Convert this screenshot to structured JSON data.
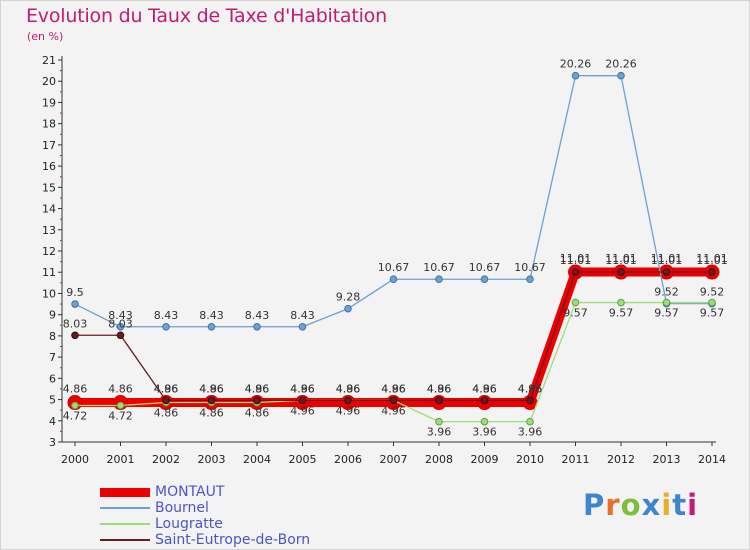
{
  "header": {
    "title": "Evolution du Taux de Taxe d'Habitation",
    "unit": "(en %)"
  },
  "logo": {
    "text": "Proxiti",
    "letter_colors": [
      "#3d86cf",
      "#e8702a",
      "#7dbf3a",
      "#3d86cf",
      "#e8b02a",
      "#3d86cf",
      "#c21b74"
    ]
  },
  "colors": {
    "title": "#c21b74",
    "MONTAUT": "#ee0000",
    "Bournel": "#6da1d2",
    "Lougratte": "#9ddc7c",
    "Saint-Eutrope-de-Born": "#6b1a20"
  },
  "chart_data": {
    "type": "line",
    "title": "Evolution du Taux de Taxe d'Habitation",
    "ylabel": "(en %)",
    "xlabel": "",
    "ylim": [
      3,
      21
    ],
    "yticks": [
      "3",
      "4",
      "5",
      "6",
      "7",
      "8",
      "9",
      "10",
      "11",
      "12",
      "13",
      "14",
      "15",
      "16",
      "17",
      "18",
      "19",
      "20",
      "21"
    ],
    "categories": [
      "2000",
      "2001",
      "2002",
      "2003",
      "2004",
      "2005",
      "2006",
      "2007",
      "2008",
      "2009",
      "2010",
      "2011",
      "2012",
      "2013",
      "2014"
    ],
    "grid": false,
    "legend_position": "bottom-left",
    "series": [
      {
        "name": "MONTAUT",
        "values": [
          4.86,
          4.86,
          4.86,
          4.86,
          4.86,
          4.86,
          4.86,
          4.86,
          4.86,
          4.86,
          4.86,
          11.01,
          11.01,
          11.01,
          11.01
        ],
        "labels": [
          "4.86",
          "4.86",
          "4.86",
          "4.86",
          "4.86",
          "4.86",
          "4.86",
          "4.86",
          "4.86",
          "4.86",
          "4.86",
          "11.01",
          "11.01",
          "11.01",
          "11.01"
        ]
      },
      {
        "name": "Bournel",
        "values": [
          9.5,
          8.43,
          8.43,
          8.43,
          8.43,
          8.43,
          9.28,
          10.67,
          10.67,
          10.67,
          10.67,
          20.26,
          20.26,
          9.52,
          9.52
        ],
        "labels": [
          "9.5",
          "8.43",
          "8.43",
          "8.43",
          "8.43",
          "8.43",
          "9.28",
          "10.67",
          "10.67",
          "10.67",
          "10.67",
          "20.26",
          "20.26",
          "9.52",
          "9.52"
        ]
      },
      {
        "name": "Lougratte",
        "values": [
          4.72,
          4.72,
          4.86,
          4.86,
          4.86,
          4.96,
          4.96,
          4.96,
          3.96,
          3.96,
          3.96,
          9.57,
          9.57,
          9.57,
          9.57
        ],
        "labels": [
          "4.72",
          "4.72",
          "4.86",
          "4.86",
          "4.86",
          "4.96",
          "4.96",
          "4.96",
          "3.96",
          "3.96",
          "3.96",
          "9.57",
          "9.57",
          "9.57",
          "9.57"
        ]
      },
      {
        "name": "Saint-Eutrope-de-Born",
        "values": [
          8.03,
          8.03,
          4.96,
          4.96,
          4.96,
          4.96,
          4.96,
          4.96,
          4.96,
          4.96,
          4.96,
          11.01,
          11.01,
          11.01,
          11.01
        ],
        "labels": [
          "8.03",
          "8.03",
          "4.96",
          "4.96",
          "4.96",
          "4.96",
          "4.96",
          "4.96",
          "4.96",
          "4.96",
          "4.96",
          "11.01",
          "11.01",
          "11.01",
          "11.01"
        ]
      }
    ]
  }
}
